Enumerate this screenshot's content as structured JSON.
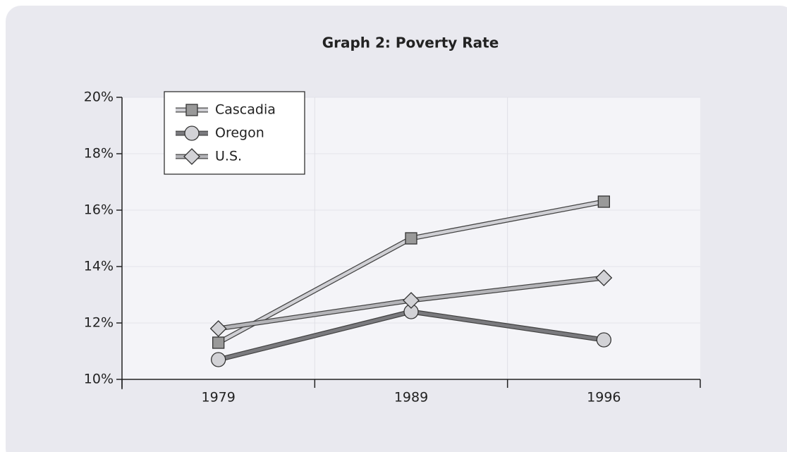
{
  "chart_data": {
    "type": "line",
    "title": "Graph 2: Poverty Rate",
    "categories": [
      "1979",
      "1989",
      "1996"
    ],
    "series": [
      {
        "name": "Cascadia",
        "color": "#cfcfd4",
        "marker": "square",
        "marker_color": "#999999",
        "values": [
          11.3,
          15.0,
          16.3
        ]
      },
      {
        "name": "Oregon",
        "color": "#7a7a7e",
        "marker": "circle",
        "marker_color": "#d2d2d6",
        "values": [
          10.7,
          12.4,
          11.4
        ]
      },
      {
        "name": "U.S.",
        "color": "#b4b4b8",
        "marker": "diamond",
        "marker_color": "#d2d2d6",
        "values": [
          11.8,
          12.8,
          13.6
        ]
      }
    ],
    "ylim": [
      10,
      20
    ],
    "yticks": [
      {
        "value": 10,
        "label": "10%"
      },
      {
        "value": 12,
        "label": "12%"
      },
      {
        "value": 14,
        "label": "14%"
      },
      {
        "value": 16,
        "label": "16%"
      },
      {
        "value": 18,
        "label": "18%"
      },
      {
        "value": 20,
        "label": "20%"
      }
    ],
    "grid": true,
    "legend": "top-left"
  }
}
